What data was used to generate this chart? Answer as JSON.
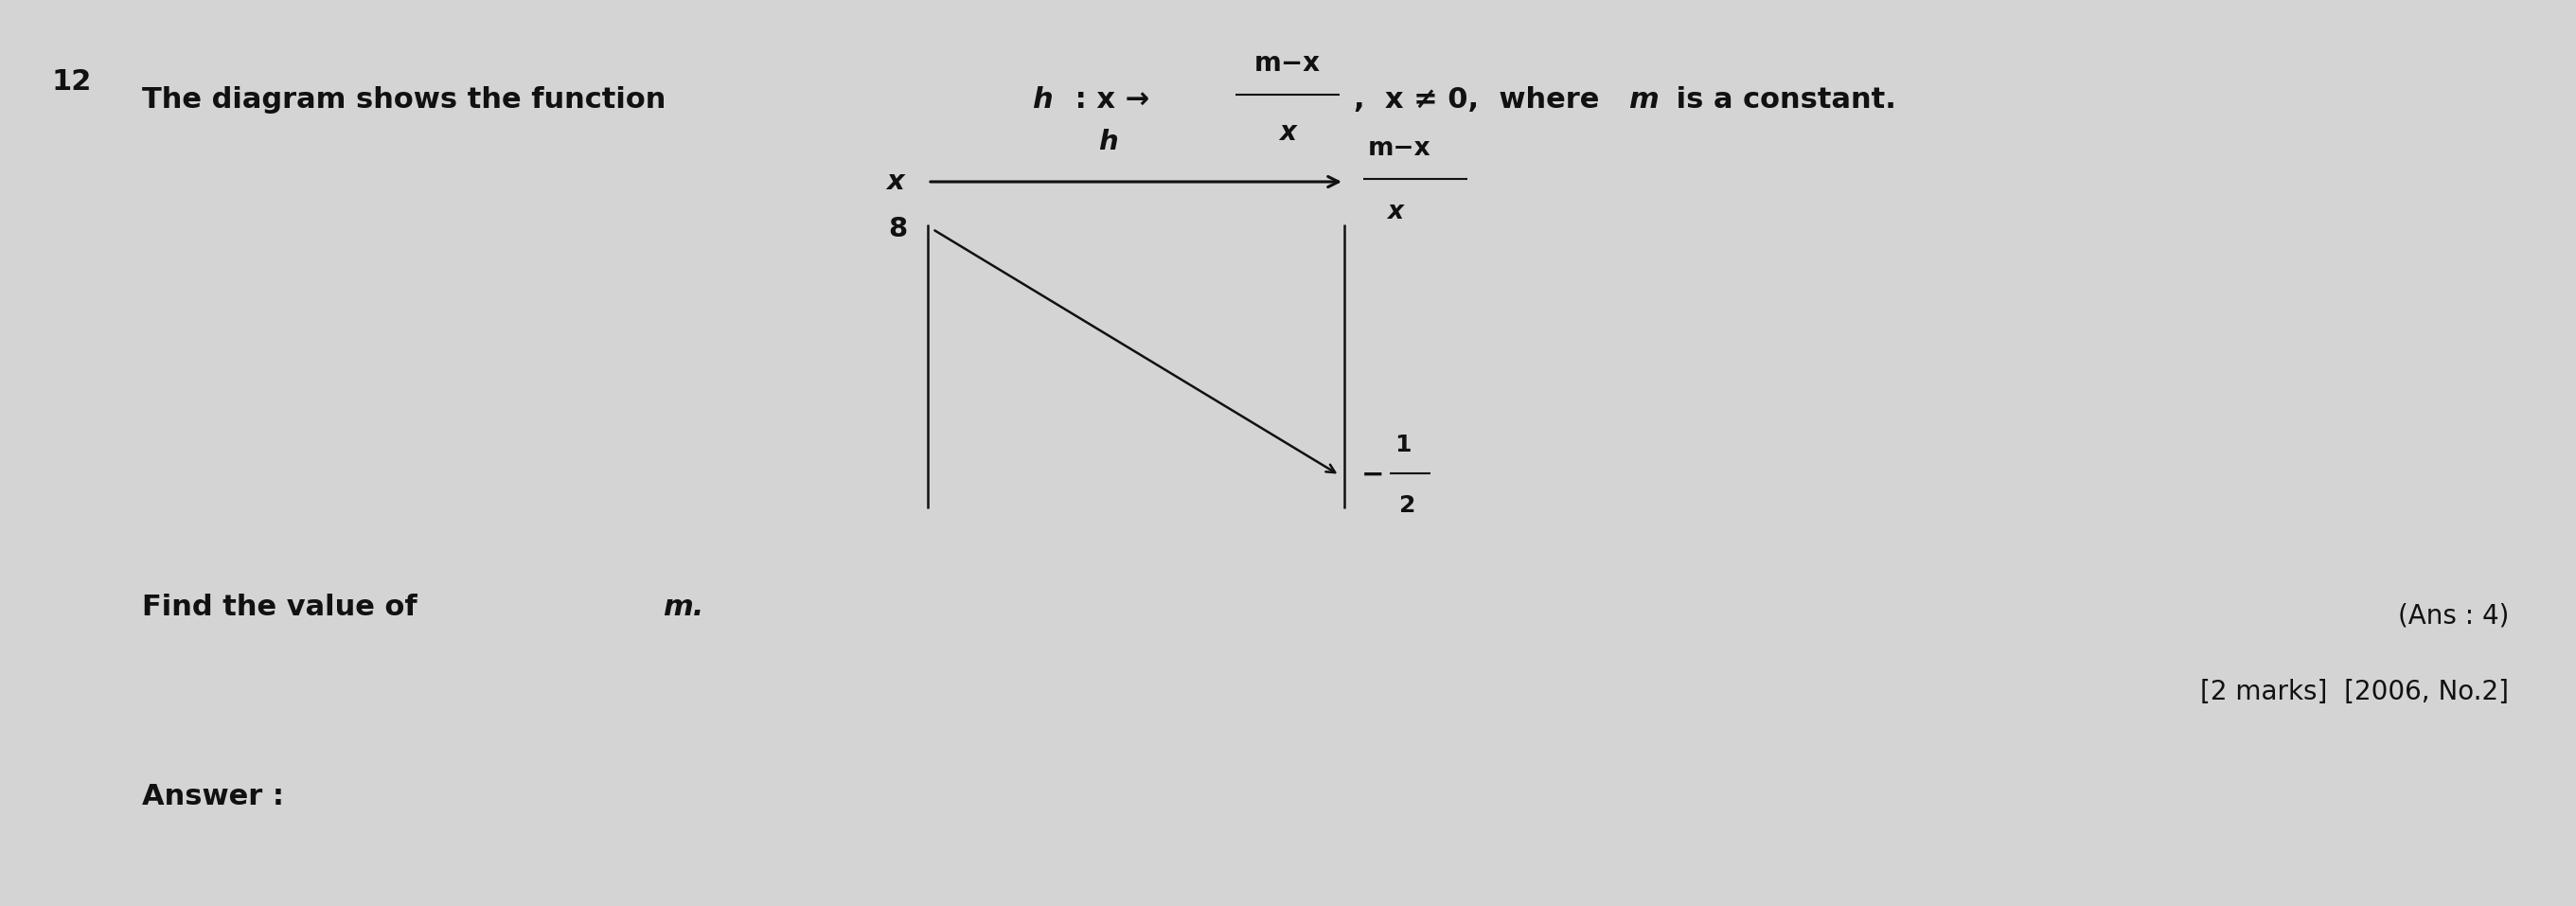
{
  "background_color": "#d4d4d4",
  "fig_width": 27.21,
  "fig_height": 9.57,
  "question_number": "12",
  "text_color": "#111111",
  "arrow_color": "#111111",
  "line_color": "#111111",
  "fontsize_main": 22,
  "fontsize_diagram": 21,
  "fontsize_small": 19,
  "fontsize_num": "12",
  "q_text_1": "The diagram shows the function  ",
  "q_h": "h",
  "q_colon_x": " : x →",
  "frac_num": "m−x",
  "frac_den": "x",
  "q_condition": ",  x ≠ 0,  where ",
  "q_m": "m",
  "q_is_const": " is a constant.",
  "diag_x_label": "x",
  "diag_h_label": "h",
  "diag_frac_num": "m−x",
  "diag_frac_den": "x",
  "diag_left_val": "8",
  "diag_right_sign": "−",
  "diag_right_num": "1",
  "diag_right_den": "2",
  "find_text": "Find the value of  ",
  "find_m": "m.",
  "ans_text": "(Ans : 4)",
  "marks_text": "[2 marks]  [2006, No.2]",
  "answer_label": "Answer :"
}
